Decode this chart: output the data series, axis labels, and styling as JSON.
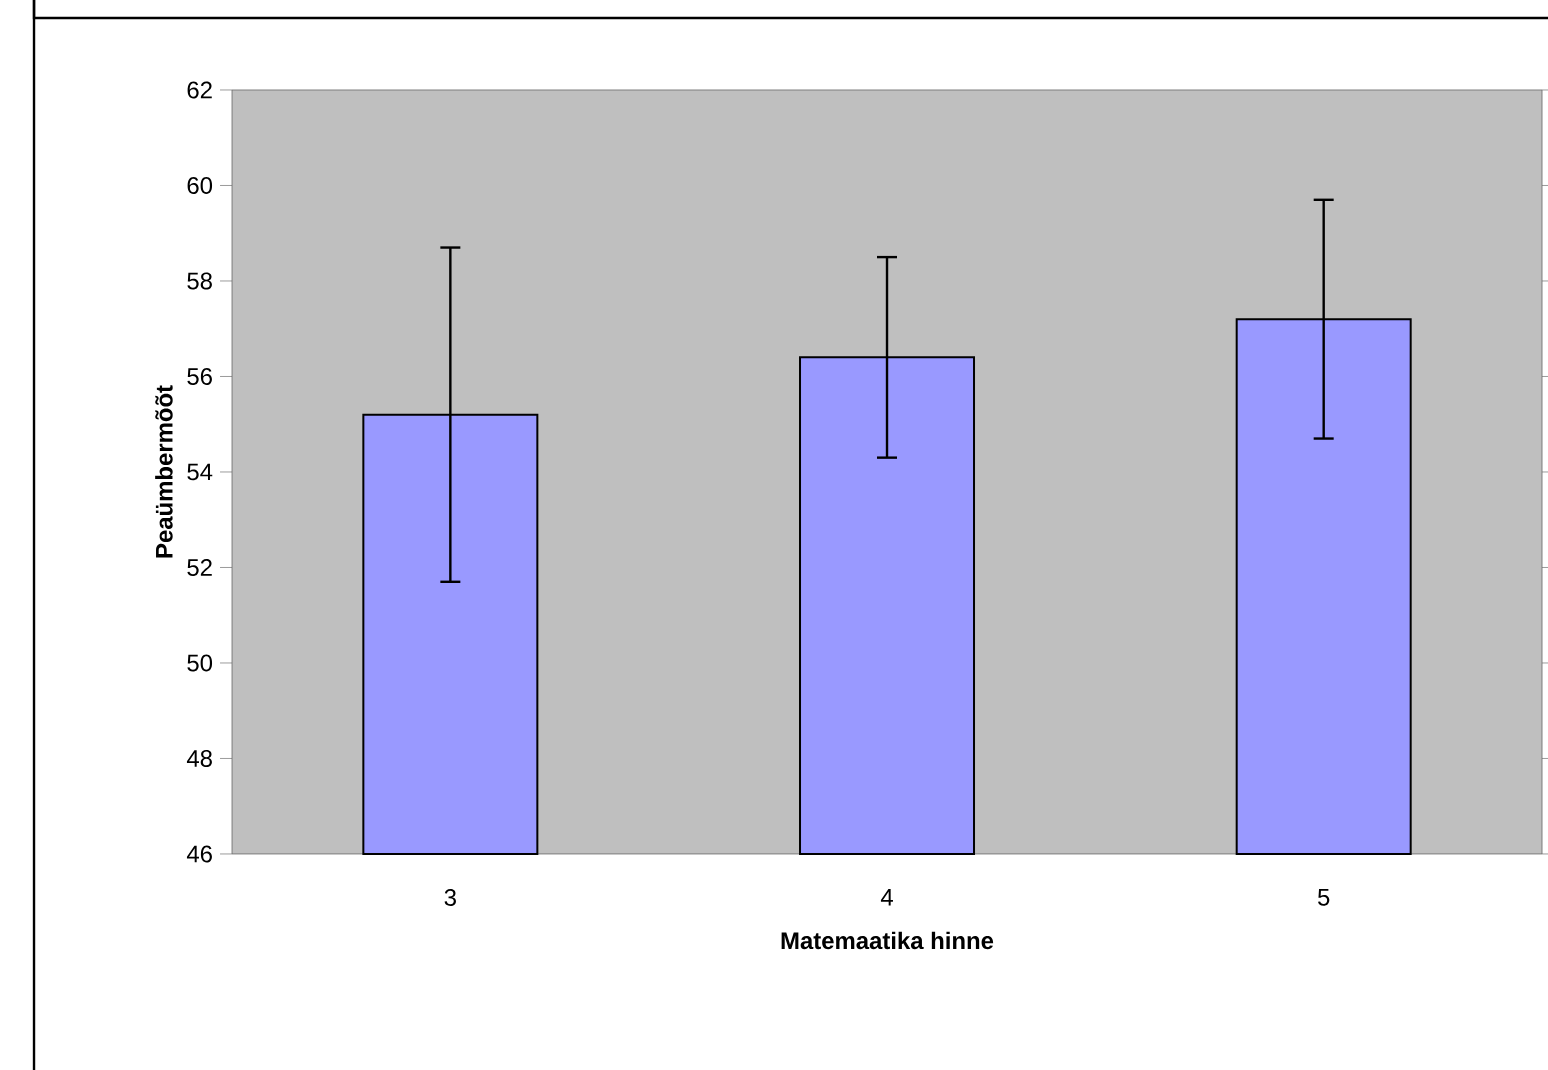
{
  "chart_data": {
    "type": "bar",
    "xlabel": "Matemaatika hinne",
    "ylabel": "Peaümbermõõt",
    "categories": [
      "3",
      "4",
      "5"
    ],
    "values": [
      55.2,
      56.4,
      57.2
    ],
    "errors": [
      3.5,
      2.1,
      2.5
    ],
    "color": "#9999ff",
    "ylim": [
      46,
      62
    ],
    "yticks": [
      46,
      48,
      50,
      52,
      54,
      56,
      58,
      60,
      62
    ],
    "grid": false
  }
}
